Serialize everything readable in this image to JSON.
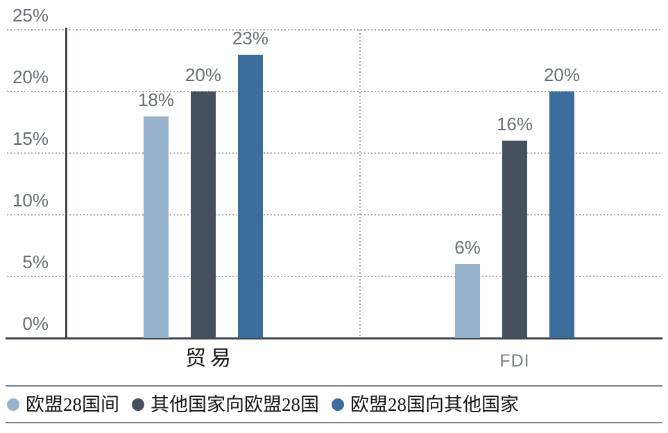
{
  "chart_data": {
    "type": "bar",
    "title": "",
    "xlabel": "",
    "ylabel": "",
    "categories": [
      "贸易",
      "FDI"
    ],
    "series": [
      {
        "name": "欧盟28国间",
        "color": "#97b3cc",
        "values": [
          18,
          6
        ],
        "data_labels": [
          "18%",
          "6%"
        ]
      },
      {
        "name": "其他国家向欧盟28国",
        "color": "#45505e",
        "values": [
          20,
          16
        ],
        "data_labels": [
          "20%",
          "16%"
        ]
      },
      {
        "name": "欧盟28国向其他国家",
        "color": "#3c6e9c",
        "values": [
          23,
          20
        ],
        "data_labels": [
          "23%",
          "20%"
        ]
      }
    ],
    "ylim": [
      0,
      25
    ],
    "yticks": [
      {
        "value": 0,
        "label": "0%"
      },
      {
        "value": 5,
        "label": "5%"
      },
      {
        "value": 10,
        "label": "10%"
      },
      {
        "value": 15,
        "label": "15%"
      },
      {
        "value": 20,
        "label": "20%"
      },
      {
        "value": 25,
        "label": "25%"
      }
    ],
    "grid": "horizontal dotted lines at 5% steps, vertical dotted separator between categories",
    "legend_position": "bottom"
  }
}
